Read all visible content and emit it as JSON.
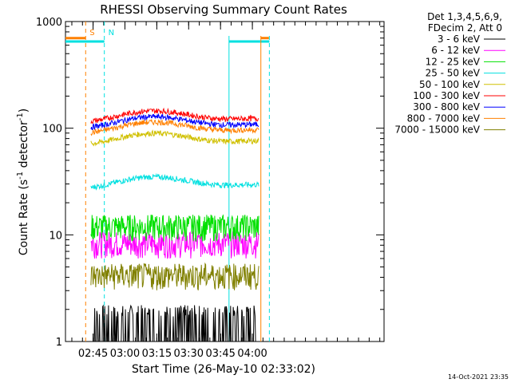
{
  "chart_data": {
    "type": "line",
    "title": "RHESSI Observing Summary Count Rates",
    "xlabel": "Start Time (26-May-10 02:33:02)",
    "ylabel_parts": [
      "Count Rate (s",
      "-1",
      " detector",
      "-1",
      ")"
    ],
    "yscale": "log",
    "ylim": [
      1,
      1000
    ],
    "xlim_min": [
      152,
      302
    ],
    "y_ticks": [
      {
        "value": 1,
        "label": "1"
      },
      {
        "value": 10,
        "label": "10"
      },
      {
        "value": 100,
        "label": "100"
      },
      {
        "value": 1000,
        "label": "1000"
      }
    ],
    "x_ticks": [
      {
        "value": 165,
        "label": "02:45"
      },
      {
        "value": 180,
        "label": "03:00"
      },
      {
        "value": 195,
        "label": "03:15"
      },
      {
        "value": 210,
        "label": "03:30"
      },
      {
        "value": 225,
        "label": "03:45"
      },
      {
        "value": 240,
        "label": "04:00"
      }
    ],
    "legend_header": [
      "Det 1,3,4,5,6,9,",
      "FDecim 2, Att 0"
    ],
    "markers": [
      {
        "label": "S",
        "time": 161.5,
        "color": "#ff8000"
      },
      {
        "label": "N",
        "time": 170.3,
        "color": "#00e0e0"
      }
    ],
    "background_series": [
      {
        "name": "orange flag",
        "color": "#ff8000",
        "values": [
          [
            152,
            161.5,
            700
          ],
          [
            244,
            247.8,
            700
          ]
        ]
      },
      {
        "name": "cyan flag",
        "color": "#00e0e0",
        "values": [
          [
            152,
            170.3,
            650
          ],
          [
            229,
            248,
            650
          ]
        ]
      }
    ],
    "series": [
      {
        "name": "3 - 6 keV",
        "color": "#000000",
        "level": 1.5
      },
      {
        "name": "6 - 12 keV",
        "color": "#ff00ff",
        "level": 8
      },
      {
        "name": "12 - 25 keV",
        "color": "#00e000",
        "level": 11.5
      },
      {
        "name": "25 - 50 keV",
        "color": "#00e0e0",
        "level": 30
      },
      {
        "name": "50 - 100 keV",
        "color": "#d0c000",
        "level": 77
      },
      {
        "name": "100 - 300 keV",
        "color": "#ff0000",
        "level": 125
      },
      {
        "name": "300 - 800 keV",
        "color": "#0000ff",
        "level": 110
      },
      {
        "name": "800 - 7000 keV",
        "color": "#ff8000",
        "level": 98
      },
      {
        "name": "7000 - 15000 keV",
        "color": "#808000",
        "level": 4
      }
    ],
    "footer": "14-Oct-2021 23:35"
  }
}
